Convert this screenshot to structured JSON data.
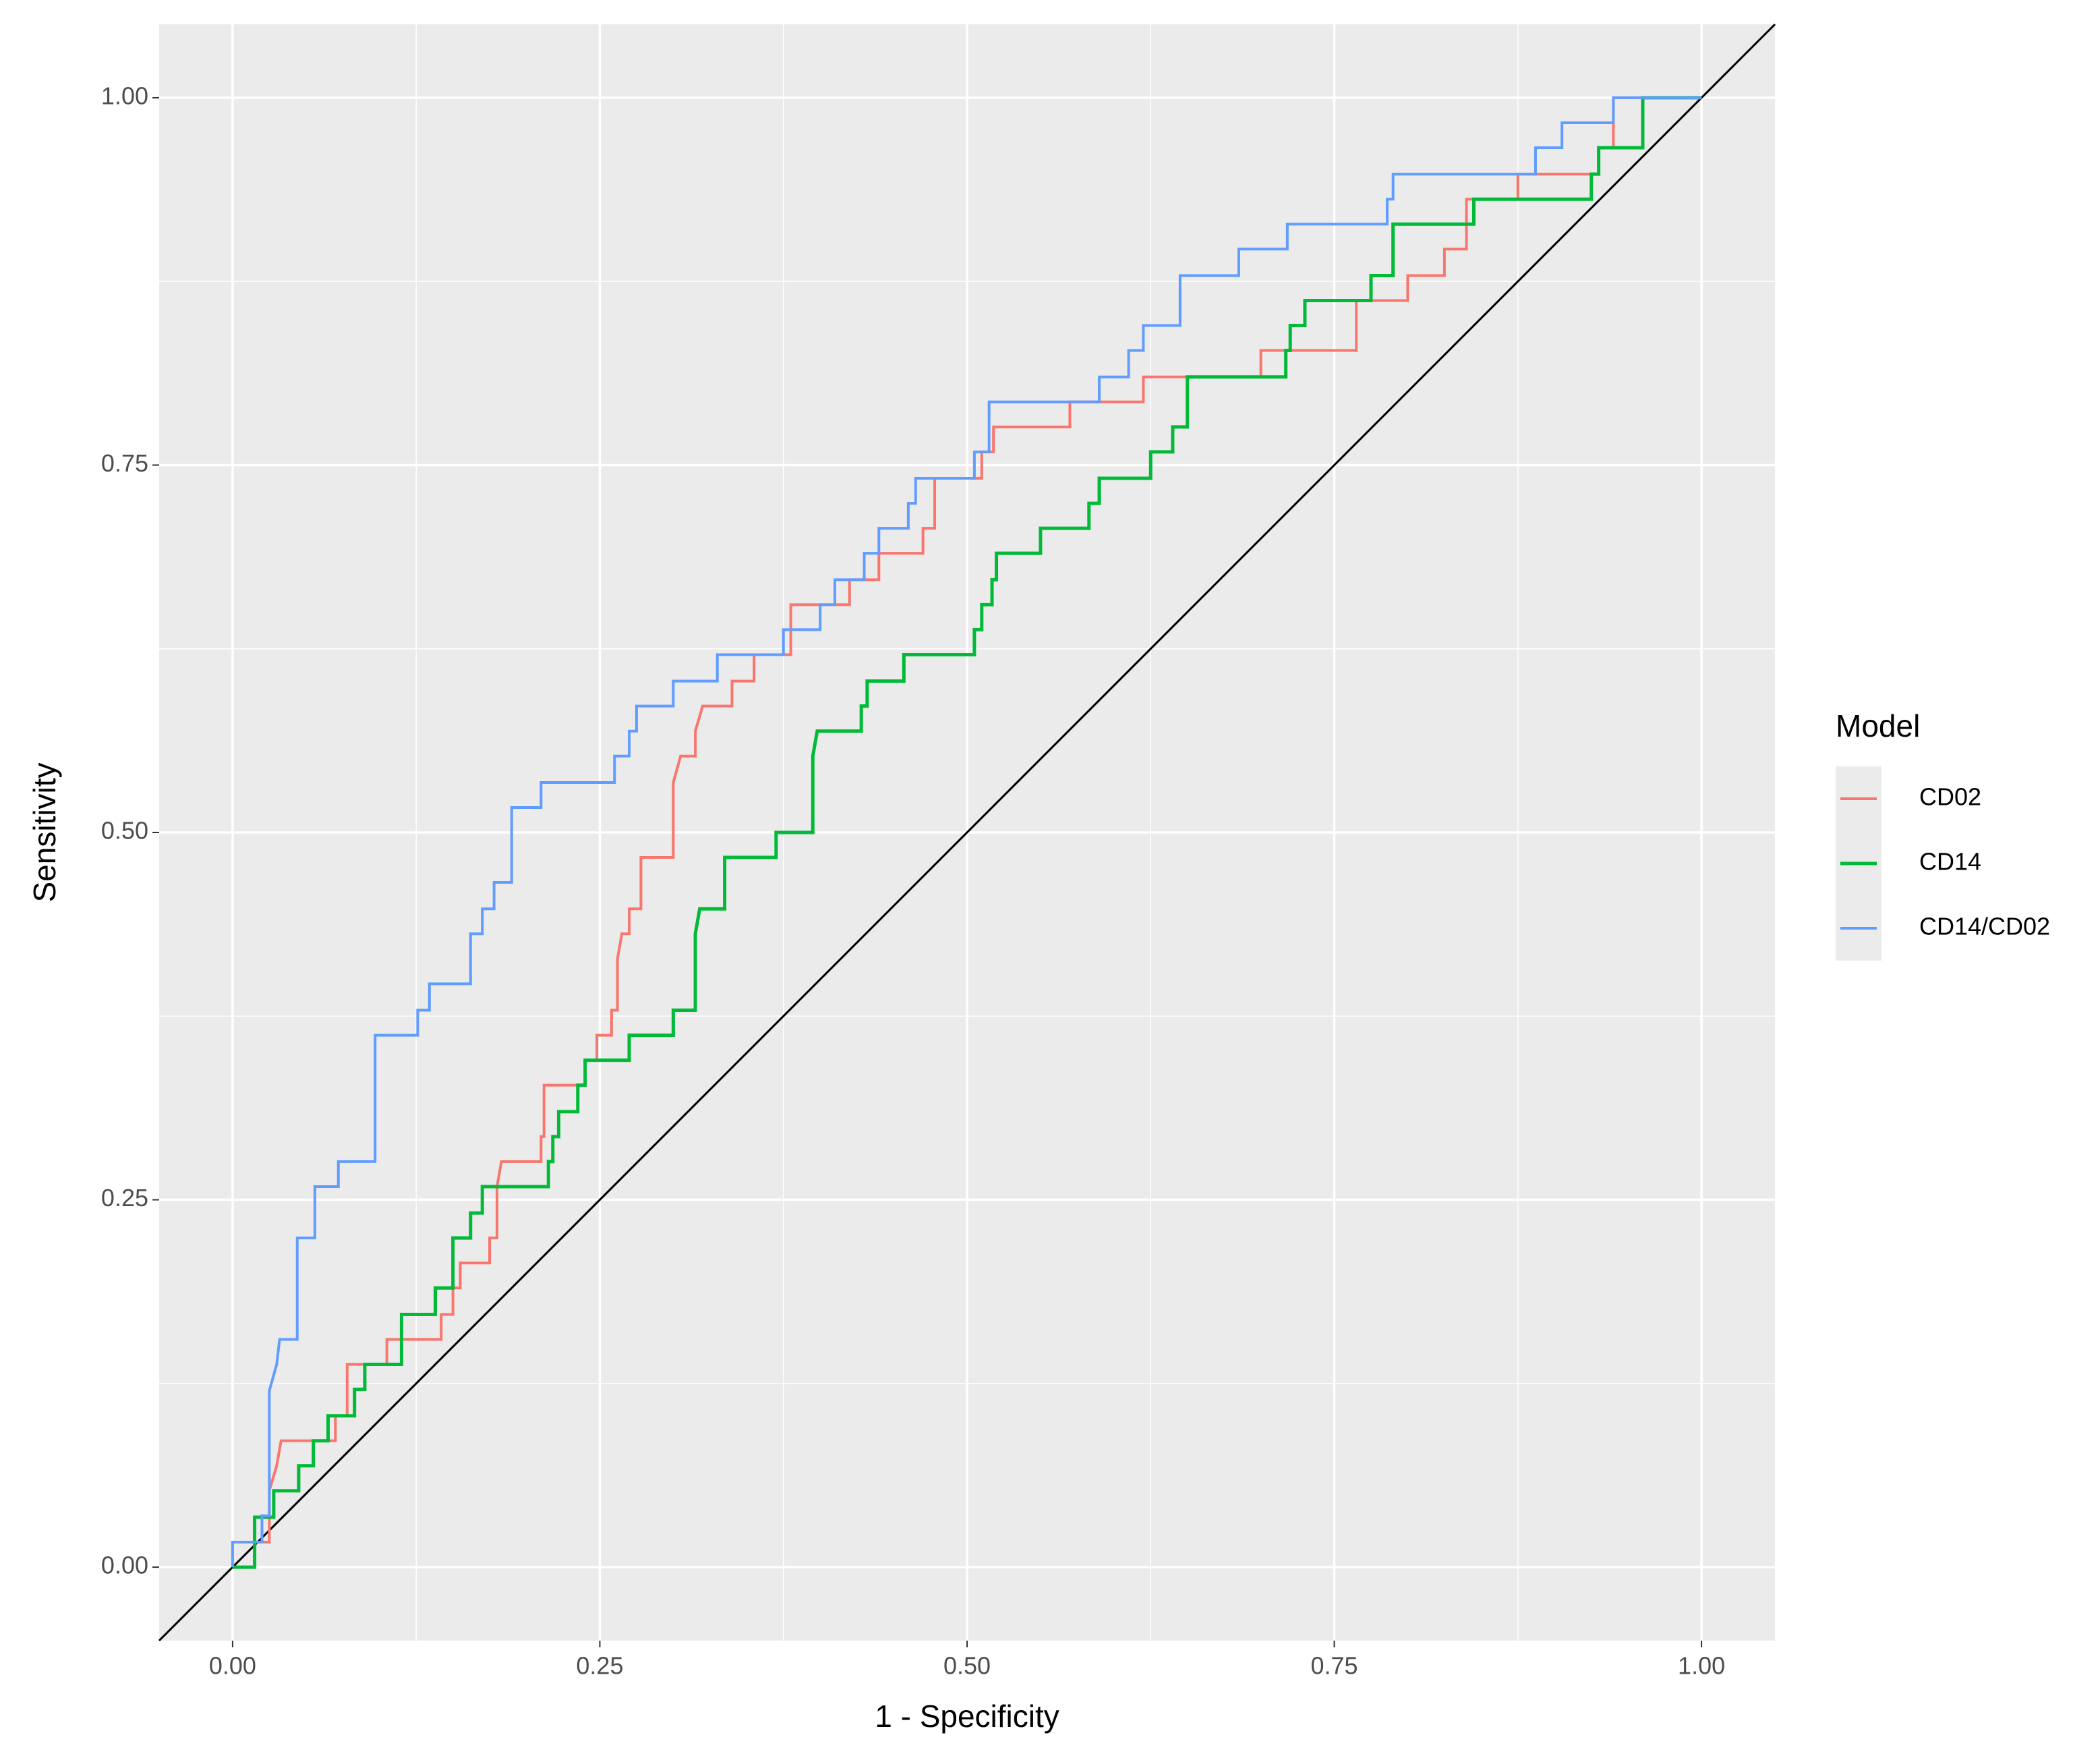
{
  "chart_data": {
    "type": "line",
    "step": true,
    "x_label": "1 - Specificity",
    "y_label": "Sensitivity",
    "legend_title": "Model",
    "legend_position": "right",
    "xlim": [
      -0.05,
      1.05
    ],
    "ylim": [
      -0.05,
      1.05
    ],
    "grid": true,
    "reference_line": "y=x",
    "xticks": [
      {
        "value": 0,
        "label": "0.00"
      },
      {
        "value": 0.25,
        "label": "0.25"
      },
      {
        "value": 0.5,
        "label": "0.50"
      },
      {
        "value": 0.75,
        "label": "0.75"
      },
      {
        "value": 1,
        "label": "1.00"
      }
    ],
    "yticks": [
      {
        "value": 0,
        "label": "0.00"
      },
      {
        "value": 0.25,
        "label": "0.25"
      },
      {
        "value": 0.5,
        "label": "0.50"
      },
      {
        "value": 0.75,
        "label": "0.75"
      },
      {
        "value": 1,
        "label": "1.00"
      }
    ],
    "series": [
      {
        "name": "CD02",
        "color": "#F8766D",
        "width": 4,
        "x": [
          0,
          0.015,
          0.015,
          0.025,
          0.025,
          0.03,
          0.033,
          0.07,
          0.07,
          0.078,
          0.078,
          0.105,
          0.105,
          0.142,
          0.142,
          0.15,
          0.15,
          0.155,
          0.155,
          0.175,
          0.175,
          0.18,
          0.18,
          0.183,
          0.21,
          0.21,
          0.212,
          0.212,
          0.24,
          0.24,
          0.248,
          0.248,
          0.258,
          0.258,
          0.262,
          0.262,
          0.265,
          0.27,
          0.27,
          0.278,
          0.278,
          0.3,
          0.3,
          0.305,
          0.315,
          0.315,
          0.32,
          0.34,
          0.34,
          0.355,
          0.355,
          0.38,
          0.38,
          0.42,
          0.42,
          0.44,
          0.44,
          0.47,
          0.47,
          0.478,
          0.478,
          0.51,
          0.51,
          0.518,
          0.518,
          0.57,
          0.57,
          0.62,
          0.62,
          0.7,
          0.7,
          0.765,
          0.765,
          0.8,
          0.8,
          0.825,
          0.825,
          0.84,
          0.84,
          0.875,
          0.875,
          0.93,
          0.93,
          0.94,
          0.94,
          1
        ],
        "values": [
          0,
          0,
          0.017,
          0.017,
          0.052,
          0.069,
          0.086,
          0.086,
          0.103,
          0.103,
          0.138,
          0.138,
          0.155,
          0.155,
          0.172,
          0.172,
          0.19,
          0.19,
          0.207,
          0.207,
          0.224,
          0.224,
          0.259,
          0.276,
          0.276,
          0.293,
          0.293,
          0.328,
          0.328,
          0.345,
          0.345,
          0.362,
          0.362,
          0.379,
          0.379,
          0.414,
          0.431,
          0.431,
          0.448,
          0.448,
          0.483,
          0.483,
          0.534,
          0.552,
          0.552,
          0.569,
          0.586,
          0.586,
          0.603,
          0.603,
          0.621,
          0.621,
          0.655,
          0.655,
          0.672,
          0.672,
          0.69,
          0.69,
          0.707,
          0.707,
          0.741,
          0.741,
          0.759,
          0.759,
          0.776,
          0.776,
          0.793,
          0.793,
          0.81,
          0.81,
          0.828,
          0.828,
          0.862,
          0.862,
          0.879,
          0.879,
          0.897,
          0.897,
          0.931,
          0.931,
          0.948,
          0.948,
          0.966,
          0.966,
          1,
          1
        ]
      },
      {
        "name": "CD14",
        "color": "#00BA38",
        "width": 5,
        "x": [
          0,
          0.015,
          0.015,
          0.028,
          0.028,
          0.045,
          0.045,
          0.055,
          0.055,
          0.065,
          0.065,
          0.083,
          0.083,
          0.09,
          0.09,
          0.115,
          0.115,
          0.138,
          0.138,
          0.15,
          0.15,
          0.162,
          0.162,
          0.17,
          0.17,
          0.215,
          0.215,
          0.218,
          0.218,
          0.222,
          0.222,
          0.235,
          0.235,
          0.24,
          0.24,
          0.27,
          0.27,
          0.3,
          0.3,
          0.315,
          0.315,
          0.318,
          0.335,
          0.335,
          0.37,
          0.37,
          0.395,
          0.395,
          0.398,
          0.428,
          0.428,
          0.432,
          0.432,
          0.457,
          0.457,
          0.505,
          0.505,
          0.51,
          0.51,
          0.517,
          0.517,
          0.52,
          0.52,
          0.55,
          0.55,
          0.583,
          0.583,
          0.59,
          0.59,
          0.625,
          0.625,
          0.64,
          0.64,
          0.65,
          0.65,
          0.717,
          0.717,
          0.72,
          0.72,
          0.73,
          0.73,
          0.775,
          0.775,
          0.79,
          0.79,
          0.845,
          0.845,
          0.925,
          0.925,
          0.93,
          0.93,
          0.96,
          0.96,
          1
        ],
        "values": [
          0,
          0,
          0.034,
          0.034,
          0.052,
          0.052,
          0.069,
          0.069,
          0.086,
          0.086,
          0.103,
          0.103,
          0.121,
          0.121,
          0.138,
          0.138,
          0.172,
          0.172,
          0.19,
          0.19,
          0.224,
          0.224,
          0.241,
          0.241,
          0.259,
          0.259,
          0.276,
          0.276,
          0.293,
          0.293,
          0.31,
          0.31,
          0.328,
          0.328,
          0.345,
          0.345,
          0.362,
          0.362,
          0.379,
          0.379,
          0.431,
          0.448,
          0.448,
          0.483,
          0.483,
          0.5,
          0.5,
          0.552,
          0.569,
          0.569,
          0.586,
          0.586,
          0.603,
          0.603,
          0.621,
          0.621,
          0.638,
          0.638,
          0.655,
          0.655,
          0.672,
          0.672,
          0.69,
          0.69,
          0.707,
          0.707,
          0.724,
          0.724,
          0.741,
          0.741,
          0.759,
          0.759,
          0.776,
          0.776,
          0.81,
          0.81,
          0.828,
          0.828,
          0.845,
          0.845,
          0.862,
          0.862,
          0.879,
          0.879,
          0.914,
          0.914,
          0.931,
          0.931,
          0.948,
          0.948,
          0.966,
          0.966,
          1,
          1
        ]
      },
      {
        "name": "CD14/CD02",
        "color": "#619CFF",
        "width": 4,
        "x": [
          0,
          0,
          0.02,
          0.02,
          0.025,
          0.025,
          0.03,
          0.032,
          0.044,
          0.044,
          0.056,
          0.056,
          0.072,
          0.072,
          0.097,
          0.097,
          0.126,
          0.126,
          0.134,
          0.134,
          0.162,
          0.162,
          0.17,
          0.17,
          0.178,
          0.178,
          0.19,
          0.19,
          0.21,
          0.21,
          0.26,
          0.26,
          0.27,
          0.27,
          0.275,
          0.275,
          0.3,
          0.3,
          0.33,
          0.33,
          0.375,
          0.375,
          0.4,
          0.4,
          0.41,
          0.41,
          0.43,
          0.43,
          0.44,
          0.44,
          0.46,
          0.46,
          0.465,
          0.465,
          0.505,
          0.505,
          0.515,
          0.515,
          0.59,
          0.59,
          0.61,
          0.61,
          0.62,
          0.62,
          0.645,
          0.645,
          0.685,
          0.685,
          0.718,
          0.718,
          0.786,
          0.786,
          0.79,
          0.79,
          0.887,
          0.887,
          0.905,
          0.905,
          0.94,
          0.94,
          1
        ],
        "values": [
          0,
          0.017,
          0.017,
          0.035,
          0.035,
          0.12,
          0.138,
          0.155,
          0.155,
          0.224,
          0.224,
          0.259,
          0.259,
          0.276,
          0.276,
          0.362,
          0.362,
          0.379,
          0.379,
          0.397,
          0.397,
          0.431,
          0.431,
          0.448,
          0.448,
          0.466,
          0.466,
          0.517,
          0.517,
          0.534,
          0.534,
          0.552,
          0.552,
          0.569,
          0.569,
          0.586,
          0.586,
          0.603,
          0.603,
          0.621,
          0.621,
          0.638,
          0.638,
          0.655,
          0.655,
          0.672,
          0.672,
          0.69,
          0.69,
          0.707,
          0.707,
          0.724,
          0.724,
          0.741,
          0.741,
          0.759,
          0.759,
          0.793,
          0.793,
          0.81,
          0.81,
          0.828,
          0.828,
          0.845,
          0.845,
          0.879,
          0.879,
          0.897,
          0.897,
          0.914,
          0.914,
          0.931,
          0.931,
          0.948,
          0.948,
          0.966,
          0.966,
          0.983,
          0.983,
          1,
          1
        ]
      }
    ]
  }
}
